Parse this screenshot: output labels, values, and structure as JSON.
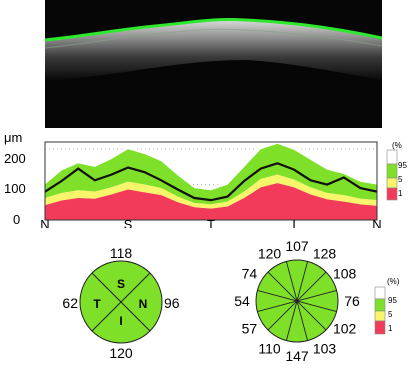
{
  "scan": {},
  "chart_data": [
    {
      "type": "area",
      "ylabel": "μm",
      "yticks": [
        "200",
        "100",
        "0"
      ],
      "ylim": [
        0,
        220
      ],
      "xcategories": [
        "N",
        "S",
        "T",
        "I",
        "N"
      ],
      "x": [
        0,
        5,
        10,
        15,
        20,
        25,
        30,
        35,
        40,
        45,
        50,
        55,
        60,
        65,
        70,
        75,
        80,
        85,
        90,
        95,
        100
      ],
      "bands": {
        "lt1": [
          42,
          55,
          62,
          60,
          72,
          86,
          78,
          70,
          50,
          36,
          32,
          38,
          62,
          92,
          104,
          92,
          72,
          58,
          52,
          44,
          40
        ],
        "lt5": [
          62,
          76,
          84,
          80,
          92,
          108,
          100,
          90,
          66,
          48,
          44,
          52,
          80,
          116,
          128,
          114,
          92,
          76,
          70,
          60,
          56
        ],
        "p95": [
          100,
          140,
          160,
          150,
          172,
          200,
          186,
          166,
          126,
          90,
          84,
          100,
          150,
          200,
          215,
          198,
          170,
          142,
          130,
          108,
          100
        ],
        "max": [
          102,
          150,
          175,
          160,
          185,
          205,
          195,
          175,
          135,
          95,
          90,
          108,
          160,
          212,
          220,
          208,
          180,
          150,
          140,
          115,
          105
        ]
      },
      "patient": [
        80,
        110,
        145,
        112,
        128,
        148,
        135,
        112,
        86,
        62,
        56,
        66,
        110,
        145,
        160,
        142,
        112,
        100,
        120,
        90,
        80
      ],
      "legend": {
        "unit": "(%",
        "levels": [
          "95",
          "5",
          "1"
        ]
      },
      "colors": {
        "above95": "#ffffff",
        "normal": "#7fe02a",
        "borderline": "#f7f56a",
        "outside": "#f23b5a",
        "line": "#111111"
      }
    },
    {
      "type": "pie",
      "name": "quadrants",
      "labels": [
        "S",
        "N",
        "I",
        "T"
      ],
      "values": [
        118,
        96,
        120,
        62
      ],
      "color": "#7fe02a"
    },
    {
      "type": "pie",
      "name": "clock-hours",
      "values": [
        107,
        128,
        108,
        76,
        102,
        103,
        147,
        110,
        57,
        54,
        74,
        120
      ],
      "color": "#7fe02a",
      "legend": {
        "unit": "(%)",
        "levels": [
          "95",
          "5",
          "1"
        ]
      }
    }
  ]
}
